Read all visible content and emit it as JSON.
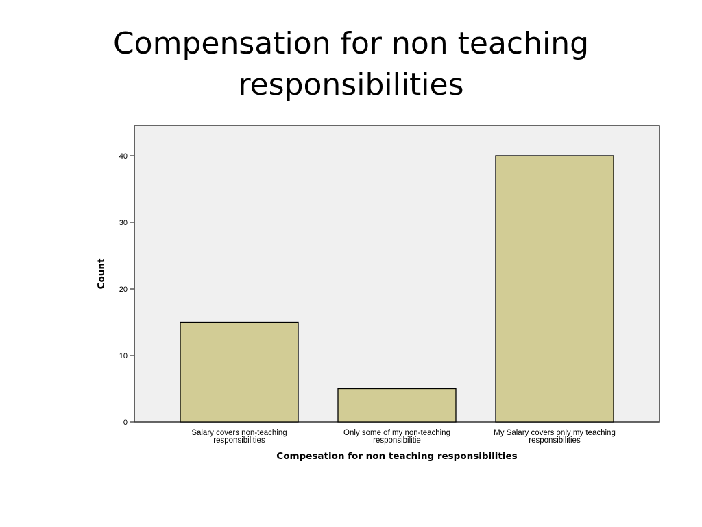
{
  "slide": {
    "title_lines": [
      "Compensation for non teaching",
      "responsibilities"
    ]
  },
  "chart_data": {
    "type": "bar",
    "categories": [
      [
        "Salary covers non-teaching",
        "responsibilities"
      ],
      [
        "Only some of my non-teaching",
        "responsibilitie"
      ],
      [
        "My Salary covers only my teaching",
        "responsibilities"
      ]
    ],
    "values": [
      15,
      5,
      40
    ],
    "xlabel": "Compesation for non teaching responsibilities",
    "ylabel": "Count",
    "ylim": [
      0,
      45
    ],
    "yticks": [
      0,
      10,
      20,
      30,
      40
    ],
    "grid": false,
    "legend": "none",
    "colors": {
      "bar_fill": "#d2cc95",
      "bar_stroke": "#000000",
      "plot_background": "#f0f0f0",
      "plot_border": "#333333"
    }
  }
}
